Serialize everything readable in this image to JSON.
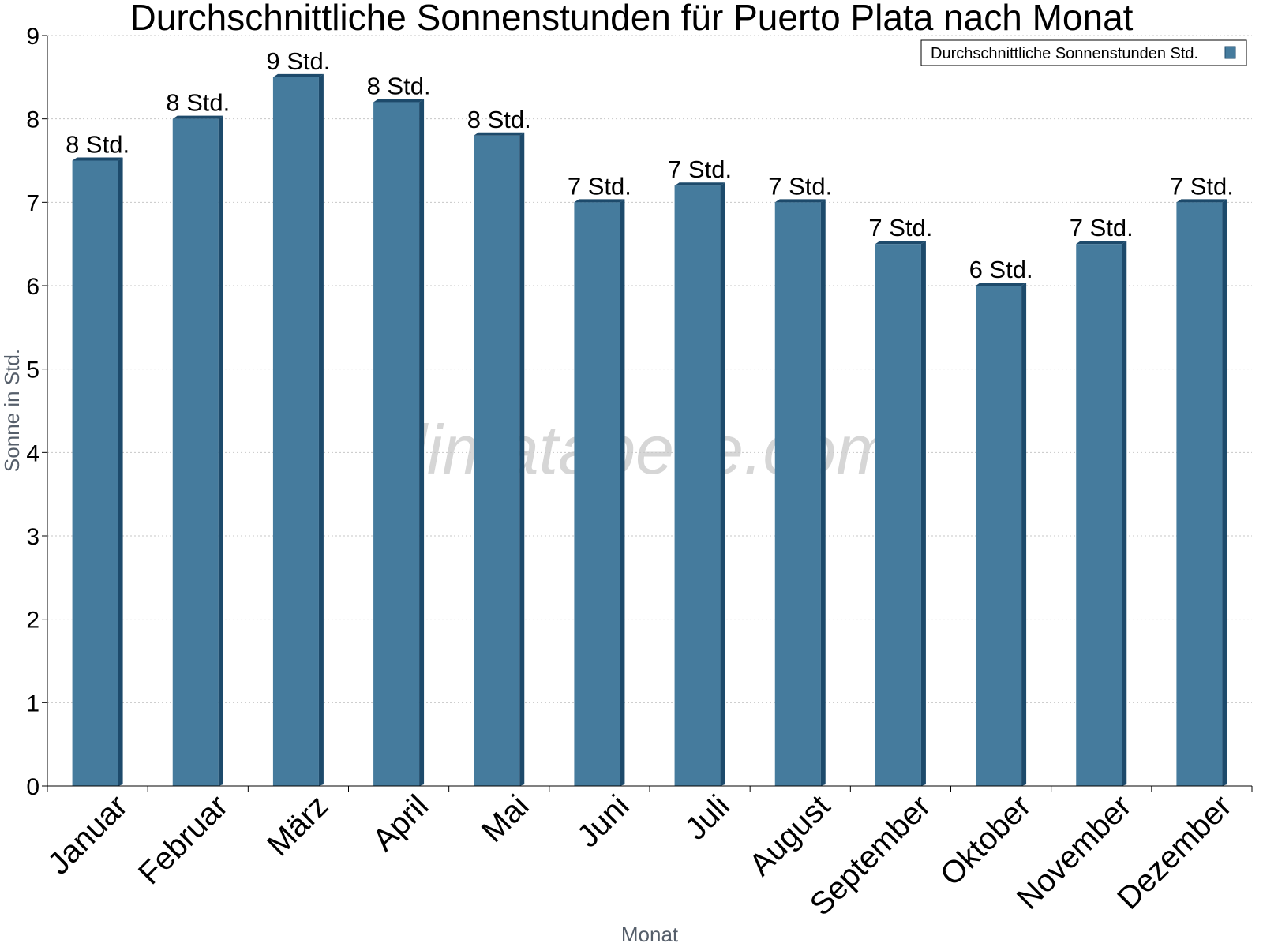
{
  "chart_data": {
    "type": "bar",
    "title": "Durchschnittliche Sonnenstunden für Puerto Plata nach Monat",
    "xlabel": "Monat",
    "ylabel": "Sonne in Std.",
    "ylim": [
      0,
      9
    ],
    "yticks": [
      0,
      1,
      2,
      3,
      4,
      5,
      6,
      7,
      8,
      9
    ],
    "grid": true,
    "legend_position": "top-right",
    "categories": [
      "Januar",
      "Februar",
      "März",
      "April",
      "Mai",
      "Juni",
      "Juli",
      "August",
      "September",
      "Oktober",
      "November",
      "Dezember"
    ],
    "series": [
      {
        "name": "Durchschnittliche Sonnenstunden Std.",
        "values": [
          7.5,
          8.0,
          8.5,
          8.2,
          7.8,
          7.0,
          7.2,
          7.0,
          6.5,
          6.0,
          6.5,
          7.0
        ],
        "labels": [
          "8 Std.",
          "8 Std.",
          "9 Std.",
          "8 Std.",
          "8 Std.",
          "7 Std.",
          "7 Std.",
          "7 Std.",
          "7 Std.",
          "6 Std.",
          "7 Std.",
          "7 Std."
        ],
        "color": "#457b9d"
      }
    ],
    "watermark": "klimatabelle.com"
  }
}
